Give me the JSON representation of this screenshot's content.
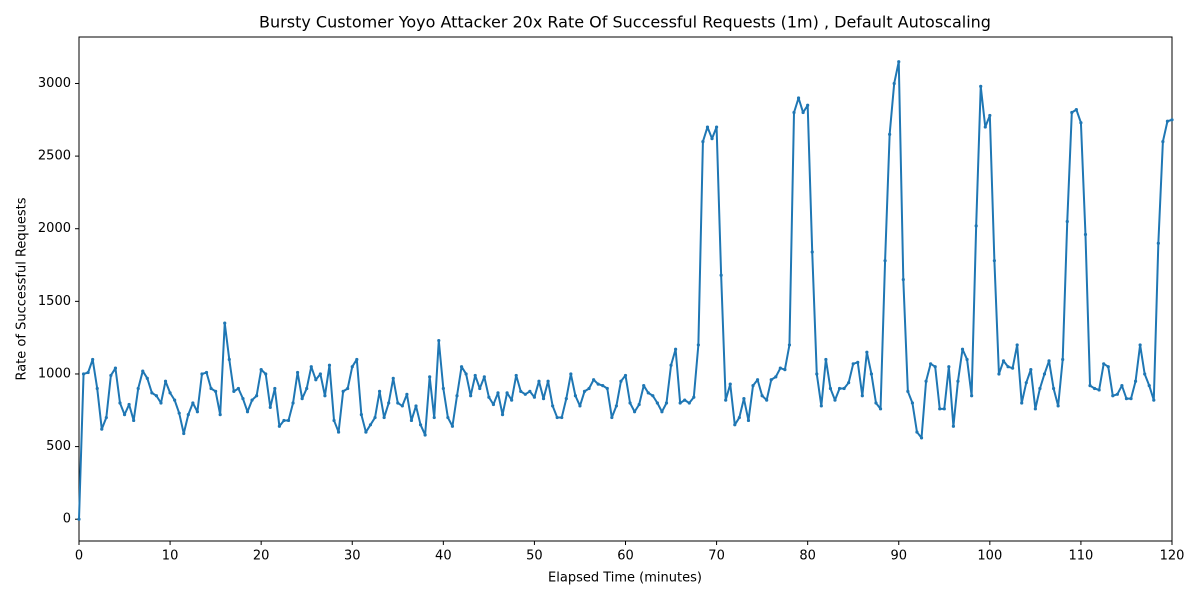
{
  "chart_data": {
    "type": "line",
    "title": "Bursty Customer Yoyo Attacker 20x Rate Of Successful Requests (1m) , Default Autoscaling",
    "x_label": "Elapsed Time (minutes)",
    "y_label": "Rate of Successful Requests",
    "xlim": [
      0,
      120
    ],
    "xticks": [
      0,
      10,
      20,
      30,
      40,
      50,
      60,
      70,
      80,
      90,
      100,
      110,
      120
    ],
    "ylim": [
      -150,
      3320
    ],
    "yticks": [
      0,
      500,
      1000,
      1500,
      2000,
      2500,
      3000
    ],
    "grid": false,
    "x": [
      0,
      0.5,
      1,
      1.5,
      2,
      2.5,
      3,
      3.5,
      4,
      4.5,
      5,
      5.5,
      6,
      6.5,
      7,
      7.5,
      8,
      8.5,
      9,
      9.5,
      10,
      10.5,
      11,
      11.5,
      12,
      12.5,
      13,
      13.5,
      14,
      14.5,
      15,
      15.5,
      16,
      16.5,
      17,
      17.5,
      18,
      18.5,
      19,
      19.5,
      20,
      20.5,
      21,
      21.5,
      22,
      22.5,
      23,
      23.5,
      24,
      24.5,
      25,
      25.5,
      26,
      26.5,
      27,
      27.5,
      28,
      28.5,
      29,
      29.5,
      30,
      30.5,
      31,
      31.5,
      32,
      32.5,
      33,
      33.5,
      34,
      34.5,
      35,
      35.5,
      36,
      36.5,
      37,
      37.5,
      38,
      38.5,
      39,
      39.5,
      40,
      40.5,
      41,
      41.5,
      42,
      42.5,
      43,
      43.5,
      44,
      44.5,
      45,
      45.5,
      46,
      46.5,
      47,
      47.5,
      48,
      48.5,
      49,
      49.5,
      50,
      50.5,
      51,
      51.5,
      52,
      52.5,
      53,
      53.5,
      54,
      54.5,
      55,
      55.5,
      56,
      56.5,
      57,
      57.5,
      58,
      58.5,
      59,
      59.5,
      60,
      60.5,
      61,
      61.5,
      62,
      62.5,
      63,
      63.5,
      64,
      64.5,
      65,
      65.5,
      66,
      66.5,
      67,
      67.5,
      68,
      68.5,
      69,
      69.5,
      70,
      70.5,
      71,
      71.5,
      72,
      72.5,
      73,
      73.5,
      74,
      74.5,
      75,
      75.5,
      76,
      76.5,
      77,
      77.5,
      78,
      78.5,
      79,
      79.5,
      80,
      80.5,
      81,
      81.5,
      82,
      82.5,
      83,
      83.5,
      84,
      84.5,
      85,
      85.5,
      86,
      86.5,
      87,
      87.5,
      88,
      88.5,
      89,
      89.5,
      90,
      90.5,
      91,
      91.5,
      92,
      92.5,
      93,
      93.5,
      94,
      94.5,
      95,
      95.5,
      96,
      96.5,
      97,
      97.5,
      98,
      98.5,
      99,
      99.5,
      100,
      100.5,
      101,
      101.5,
      102,
      102.5,
      103,
      103.5,
      104,
      104.5,
      105,
      105.5,
      106,
      106.5,
      107,
      107.5,
      108,
      108.5,
      109,
      109.5,
      110,
      110.5,
      111,
      111.5,
      112,
      112.5,
      113,
      113.5,
      114,
      114.5,
      115,
      115.5,
      116,
      116.5,
      117,
      117.5,
      118,
      118.5,
      119,
      119.5,
      120
    ],
    "series": [
      {
        "color": "#1f77b4",
        "values": [
          0,
          1000,
          1010,
          1100,
          900,
          620,
          700,
          990,
          1040,
          800,
          720,
          790,
          680,
          900,
          1020,
          970,
          870,
          850,
          800,
          950,
          870,
          820,
          730,
          590,
          720,
          800,
          740,
          1000,
          1010,
          900,
          880,
          720,
          1350,
          1100,
          880,
          900,
          830,
          740,
          820,
          850,
          1030,
          1000,
          770,
          900,
          640,
          680,
          680,
          800,
          1010,
          830,
          900,
          1050,
          960,
          1000,
          850,
          1060,
          680,
          600,
          880,
          900,
          1050,
          1100,
          720,
          600,
          650,
          700,
          880,
          700,
          800,
          970,
          800,
          780,
          860,
          680,
          780,
          650,
          580,
          980,
          700,
          1230,
          900,
          700,
          640,
          850,
          1050,
          1000,
          850,
          990,
          900,
          980,
          840,
          790,
          870,
          720,
          870,
          820,
          990,
          880,
          860,
          880,
          840,
          950,
          830,
          950,
          780,
          700,
          700,
          830,
          1000,
          850,
          780,
          880,
          900,
          960,
          930,
          920,
          900,
          700,
          780,
          950,
          990,
          800,
          740,
          790,
          920,
          870,
          850,
          800,
          740,
          800,
          1060,
          1170,
          800,
          820,
          800,
          840,
          1200,
          2600,
          2700,
          2620,
          2700,
          1680,
          820,
          930,
          650,
          700,
          830,
          680,
          920,
          960,
          850,
          820,
          960,
          980,
          1040,
          1030,
          1200,
          2800,
          2900,
          2800,
          2850,
          1840,
          1000,
          780,
          1100,
          900,
          820,
          900,
          900,
          940,
          1070,
          1080,
          850,
          1150,
          1000,
          800,
          760,
          1780,
          2650,
          3000,
          3150,
          1650,
          880,
          800,
          600,
          560,
          950,
          1070,
          1050,
          760,
          760,
          1050,
          640,
          950,
          1170,
          1100,
          850,
          2020,
          2980,
          2700,
          2780,
          1780,
          1000,
          1090,
          1050,
          1040,
          1200,
          800,
          940,
          1030,
          760,
          900,
          1000,
          1090,
          900,
          780,
          1100,
          2050,
          2800,
          2820,
          2730,
          1960,
          920,
          900,
          890,
          1070,
          1050,
          850,
          860,
          920,
          830,
          830,
          950,
          1200,
          1000,
          920,
          820,
          1900,
          2600,
          2740,
          2750
        ]
      }
    ]
  }
}
